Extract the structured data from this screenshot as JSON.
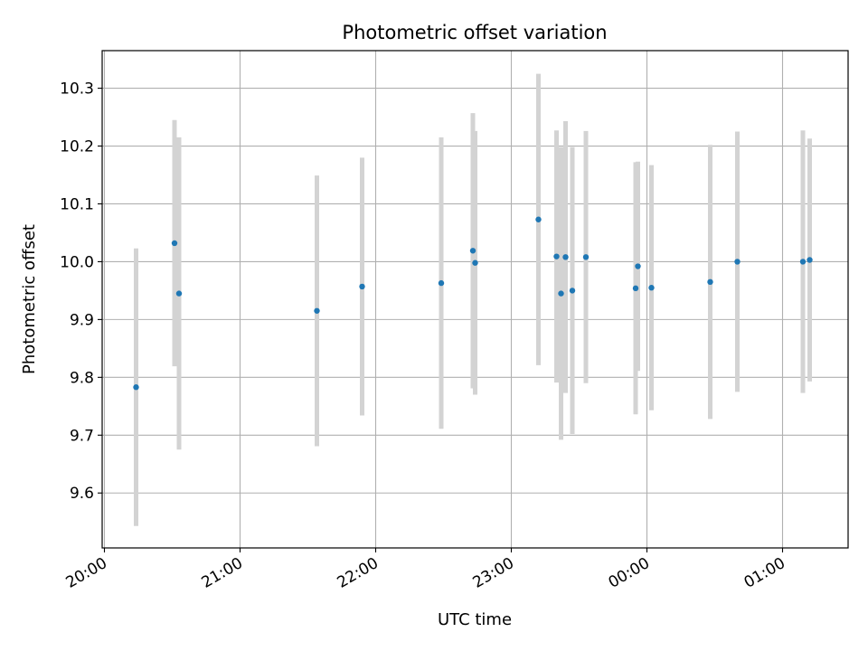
{
  "chart_data": {
    "type": "scatter",
    "title": "Photometric offset variation",
    "xlabel": "UTC time",
    "ylabel": "Photometric offset",
    "xlim": [
      "2000-01-01T19:59:00",
      "2000-01-02T01:29:00"
    ],
    "ylim": [
      9.505,
      10.365
    ],
    "grid": true,
    "x_tick_labels": [
      "20:00",
      "21:00",
      "22:00",
      "23:00",
      "00:00",
      "01:00"
    ],
    "y_tick_labels": [
      "9.6",
      "9.7",
      "9.8",
      "9.9",
      "10.0",
      "10.1",
      "10.2",
      "10.3"
    ],
    "colors": {
      "points": "#1f77b4",
      "errorbars": "#d3d3d3",
      "grid": "#b0b0b0"
    },
    "points": [
      {
        "x": "2000-01-01T20:14:00",
        "y": 9.783,
        "yerr": 0.24
      },
      {
        "x": "2000-01-01T20:31:00",
        "y": 10.032,
        "yerr": 0.213
      },
      {
        "x": "2000-01-01T20:33:00",
        "y": 9.945,
        "yerr": 0.27
      },
      {
        "x": "2000-01-01T21:34:00",
        "y": 9.915,
        "yerr": 0.234
      },
      {
        "x": "2000-01-01T21:54:00",
        "y": 9.957,
        "yerr": 0.223
      },
      {
        "x": "2000-01-01T22:29:00",
        "y": 9.963,
        "yerr": 0.252
      },
      {
        "x": "2000-01-01T22:43:00",
        "y": 10.019,
        "yerr": 0.238
      },
      {
        "x": "2000-01-01T22:44:00",
        "y": 9.998,
        "yerr": 0.228
      },
      {
        "x": "2000-01-01T23:12:00",
        "y": 10.073,
        "yerr": 0.252
      },
      {
        "x": "2000-01-01T23:20:00",
        "y": 10.009,
        "yerr": 0.218
      },
      {
        "x": "2000-01-01T23:22:00",
        "y": 9.945,
        "yerr": 0.253
      },
      {
        "x": "2000-01-01T23:24:00",
        "y": 10.008,
        "yerr": 0.235
      },
      {
        "x": "2000-01-01T23:27:00",
        "y": 9.95,
        "yerr": 0.248
      },
      {
        "x": "2000-01-01T23:33:00",
        "y": 10.008,
        "yerr": 0.218
      },
      {
        "x": "2000-01-01T23:55:00",
        "y": 9.954,
        "yerr": 0.218
      },
      {
        "x": "2000-01-01T23:56:00",
        "y": 9.992,
        "yerr": 0.181
      },
      {
        "x": "2000-01-02T00:02:00",
        "y": 9.955,
        "yerr": 0.212
      },
      {
        "x": "2000-01-02T00:28:00",
        "y": 9.965,
        "yerr": 0.237
      },
      {
        "x": "2000-01-02T00:40:00",
        "y": 10.0,
        "yerr": 0.225
      },
      {
        "x": "2000-01-02T01:09:00",
        "y": 10.0,
        "yerr": 0.227
      },
      {
        "x": "2000-01-02T01:12:00",
        "y": 10.003,
        "yerr": 0.21
      }
    ]
  }
}
